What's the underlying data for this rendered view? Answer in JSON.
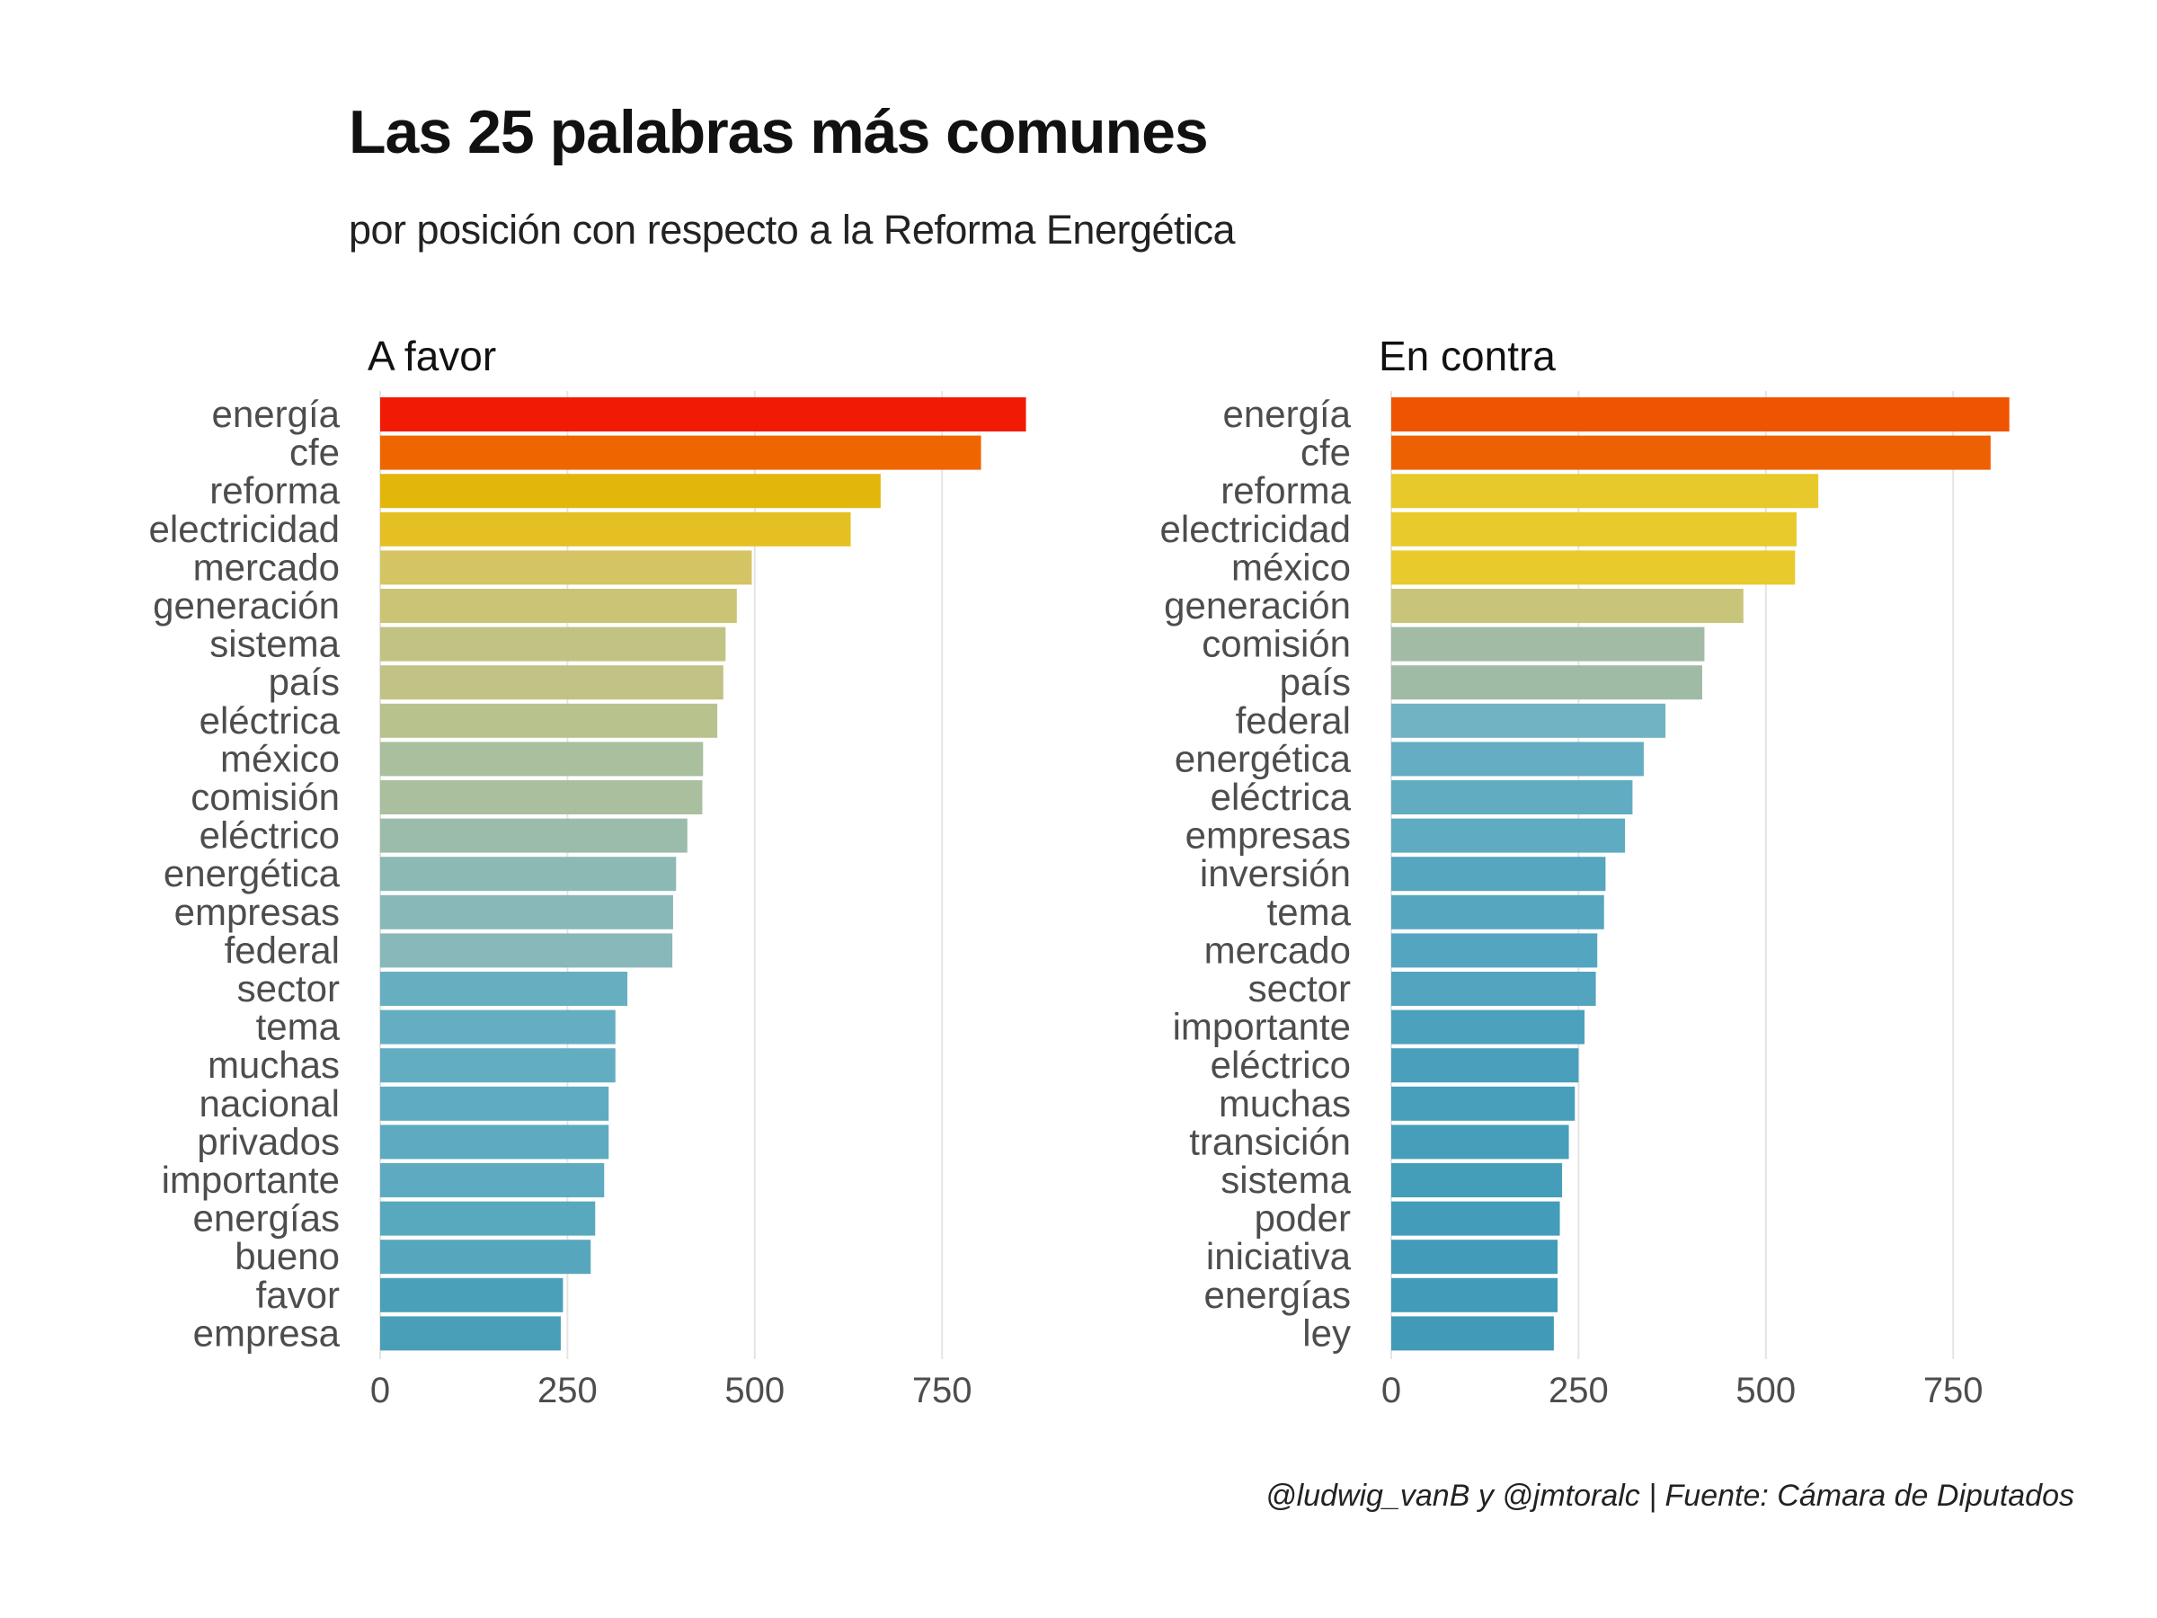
{
  "title": "Las 25 palabras más comunes",
  "subtitle": "por posición con respecto a la Reforma Energética",
  "caption": "@ludwig_vanB y @jmtoralc | Fuente: Cámara de Diputados",
  "chart_data": [
    {
      "type": "bar",
      "orientation": "horizontal",
      "title": "A favor",
      "xlabel": "",
      "ylabel": "",
      "xlim": [
        0,
        880
      ],
      "ticks": [
        0,
        250,
        500,
        750
      ],
      "grid": true,
      "categories": [
        "energía",
        "cfe",
        "reforma",
        "electricidad",
        "mercado",
        "generación",
        "sistema",
        "país",
        "eléctrica",
        "méxico",
        "comisión",
        "eléctrico",
        "energética",
        "empresas",
        "federal",
        "sector",
        "tema",
        "muchas",
        "nacional",
        "privados",
        "importante",
        "energías",
        "bueno",
        "favor",
        "empresa"
      ],
      "values": [
        862,
        802,
        668,
        628,
        496,
        476,
        461,
        458,
        450,
        431,
        430,
        410,
        395,
        391,
        390,
        330,
        314,
        314,
        305,
        305,
        299,
        287,
        281,
        244,
        241
      ],
      "colors": [
        "#F11B05",
        "#EF6500",
        "#E3B60C",
        "#E5C022",
        "#D5C463",
        "#CBC474",
        "#C1C383",
        "#C0C286",
        "#B8C28D",
        "#A9BF9D",
        "#A9BF9D",
        "#9CBCAB",
        "#8DB9B5",
        "#89B8B8",
        "#88B8B9",
        "#67AFC0",
        "#65AEC1",
        "#63ADC1",
        "#5FABC1",
        "#5EABC1",
        "#5EABC1",
        "#58A8BE",
        "#56A7BE",
        "#4AA0B8",
        "#489FB7"
      ]
    },
    {
      "type": "bar",
      "orientation": "horizontal",
      "title": "En contra",
      "xlabel": "",
      "ylabel": "",
      "xlim": [
        0,
        880
      ],
      "ticks": [
        0,
        250,
        500,
        750
      ],
      "grid": true,
      "categories": [
        "energía",
        "cfe",
        "reforma",
        "electricidad",
        "méxico",
        "generación",
        "comisión",
        "país",
        "federal",
        "energética",
        "eléctrica",
        "empresas",
        "inversión",
        "tema",
        "mercado",
        "sector",
        "importante",
        "eléctrico",
        "muchas",
        "transición",
        "sistema",
        "poder",
        "iniciativa",
        "energías",
        "ley"
      ],
      "values": [
        825,
        800,
        570,
        541,
        539,
        470,
        418,
        415,
        366,
        337,
        322,
        312,
        286,
        284,
        275,
        273,
        258,
        250,
        245,
        237,
        228,
        225,
        222,
        222,
        217
      ],
      "colors": [
        "#EF5400",
        "#EE6103",
        "#E8C92C",
        "#E8CA2C",
        "#E8CA2C",
        "#C8C47A",
        "#A1BBA4",
        "#A0BBA5",
        "#71B3C2",
        "#65ADC3",
        "#62ACC2",
        "#5FABC2",
        "#56A6C0",
        "#56A6C0",
        "#53A5C0",
        "#52A4BF",
        "#4CA1BD",
        "#4AA0BC",
        "#489FBB",
        "#469EBA",
        "#449DB9",
        "#439CB9",
        "#429BB8",
        "#429BB8",
        "#419BB8"
      ]
    }
  ]
}
